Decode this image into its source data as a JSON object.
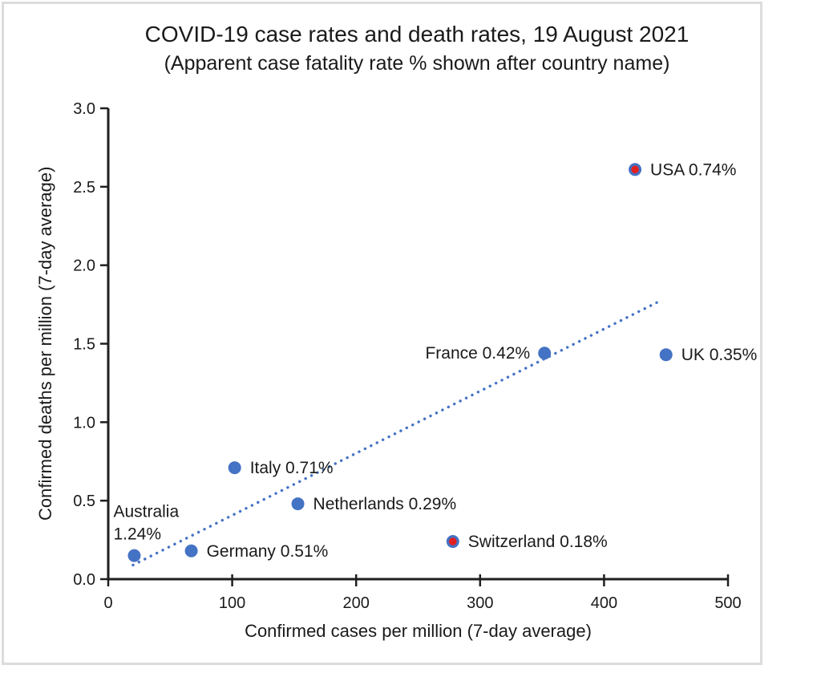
{
  "chart_data": {
    "type": "scatter",
    "title": "COVID-19 case rates and death rates, 19 August 2021",
    "subtitle": "(Apparent case fatality rate % shown after country name)",
    "xlabel": "Confirmed cases per million (7-day average)",
    "ylabel": "Confirmed deaths per million (7-day average)",
    "xlim": [
      0,
      500
    ],
    "ylim": [
      0,
      3
    ],
    "x_ticks": [
      0,
      100,
      200,
      300,
      400,
      500
    ],
    "y_ticks": [
      "0.0",
      "0.5",
      "1.0",
      "1.5",
      "2.0",
      "2.5",
      "3.0"
    ],
    "grid": false,
    "legend": "none",
    "points": [
      {
        "country": "Australia",
        "cfr": "1.24%",
        "label": "Australia 1.24%",
        "label_lines": [
          "Australia",
          "1.24%"
        ],
        "x": 21,
        "y": 0.15,
        "marker": "blue",
        "label_side": "above-left"
      },
      {
        "country": "Germany",
        "cfr": "0.51%",
        "label": "Germany 0.51%",
        "x": 67,
        "y": 0.18,
        "marker": "red-center-none",
        "label_side": "right"
      },
      {
        "country": "Italy",
        "cfr": "0.71%",
        "label": "Italy 0.71%",
        "x": 102,
        "y": 0.71,
        "marker": "blue",
        "label_side": "right"
      },
      {
        "country": "Netherlands",
        "cfr": "0.29%",
        "label": "Netherlands 0.29%",
        "x": 153,
        "y": 0.48,
        "marker": "blue",
        "label_side": "right"
      },
      {
        "country": "Switzerland",
        "cfr": "0.18%",
        "label": "Switzerland 0.18%",
        "x": 278,
        "y": 0.24,
        "marker": "red-blue",
        "label_side": "right"
      },
      {
        "country": "France",
        "cfr": "0.42%",
        "label": "France 0.42%",
        "x": 352,
        "y": 1.44,
        "marker": "blue",
        "label_side": "left"
      },
      {
        "country": "UK",
        "cfr": "0.35%",
        "label": "UK 0.35%",
        "x": 450,
        "y": 1.43,
        "marker": "blue",
        "label_side": "right"
      },
      {
        "country": "USA",
        "cfr": "0.74%",
        "label": "USA 0.74%",
        "x": 425,
        "y": 2.61,
        "marker": "red-blue",
        "label_side": "right"
      }
    ],
    "trendline": {
      "style": "dotted",
      "x1": 20,
      "y1": 0.09,
      "x2": 447,
      "y2": 1.78
    },
    "colors": {
      "marker_blue": "#4472c4",
      "marker_red": "#e32020",
      "trendline": "#4472c4",
      "axis": "#1f1f1f",
      "text": "#1a1a1a",
      "frame_border": "#dcdcdc"
    }
  }
}
